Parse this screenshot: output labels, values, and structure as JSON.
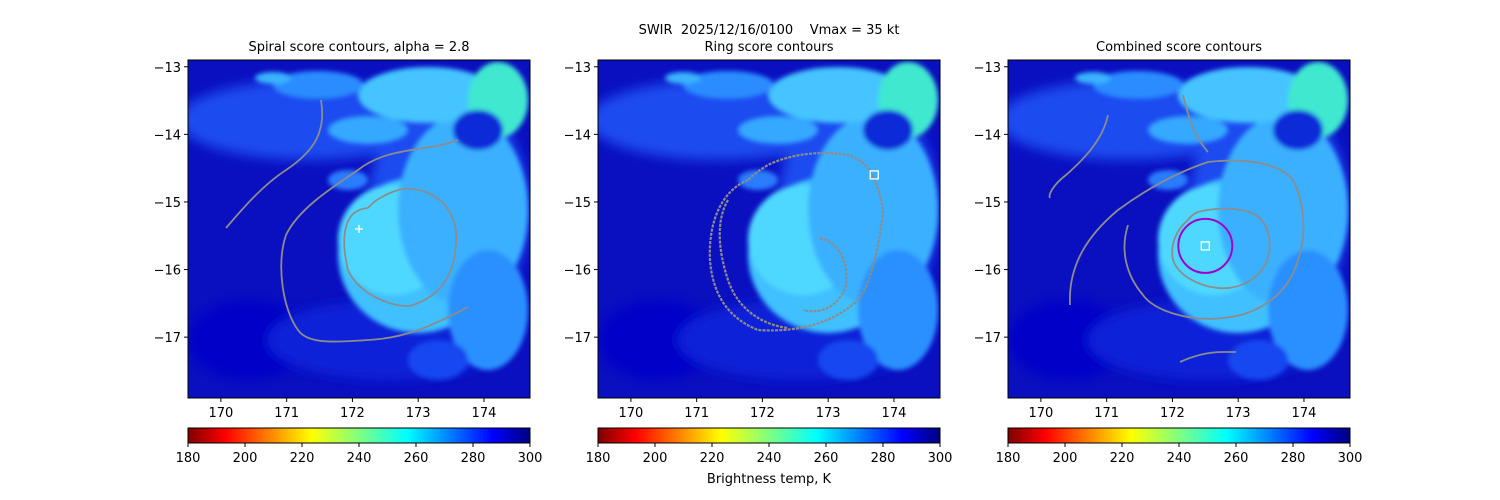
{
  "figure": {
    "suptitle_line1": "SWIR  2025/12/16/0100    Vmax = 35 kt",
    "colorbar_label": "Brightness temp, K"
  },
  "chart_data": [
    {
      "type": "heatmap",
      "title": "Spiral score contours, alpha =  2.8",
      "xlim": [
        169.5,
        174.7
      ],
      "ylim": [
        -17.9,
        -12.9
      ],
      "xticks": [
        170,
        171,
        172,
        173,
        174
      ],
      "yticks": [
        -13,
        -14,
        -15,
        -16,
        -17
      ],
      "colormap": "jet_r",
      "colorbar": {
        "min": 180,
        "max": 300,
        "ticks": [
          180,
          200,
          220,
          240,
          260,
          280,
          300
        ]
      },
      "contour_color": "#8c8c8c",
      "center_marker": {
        "shape": "plus",
        "color": "#ffffff",
        "x": 172.1,
        "y": -15.4
      }
    },
    {
      "type": "heatmap",
      "title": "Ring score contours",
      "xlim": [
        169.5,
        174.7
      ],
      "ylim": [
        -17.9,
        -12.9
      ],
      "xticks": [
        170,
        171,
        172,
        173,
        174
      ],
      "yticks": [
        -13,
        -14,
        -15,
        -16,
        -17
      ],
      "colormap": "jet_r",
      "colorbar": {
        "min": 180,
        "max": 300,
        "ticks": [
          180,
          200,
          220,
          240,
          260,
          280,
          300
        ]
      },
      "contour_color": "#8c8c8c",
      "center_marker": {
        "shape": "square",
        "color": "#ffffff",
        "x": 173.7,
        "y": -14.6
      }
    },
    {
      "type": "heatmap",
      "title": "Combined score contours",
      "xlim": [
        169.5,
        174.7
      ],
      "ylim": [
        -17.9,
        -12.9
      ],
      "xticks": [
        170,
        171,
        172,
        173,
        174
      ],
      "yticks": [
        -13,
        -14,
        -15,
        -16,
        -17
      ],
      "colormap": "jet_r",
      "colorbar": {
        "min": 180,
        "max": 300,
        "ticks": [
          180,
          200,
          220,
          240,
          260,
          280,
          300
        ]
      },
      "contour_color": "#8c8c8c",
      "center_marker": {
        "shape": "square",
        "color": "#ffffff",
        "x": 172.5,
        "y": -15.65
      },
      "ring_circle": {
        "color": "#a000d0",
        "x": 172.5,
        "y": -15.65
      }
    }
  ]
}
